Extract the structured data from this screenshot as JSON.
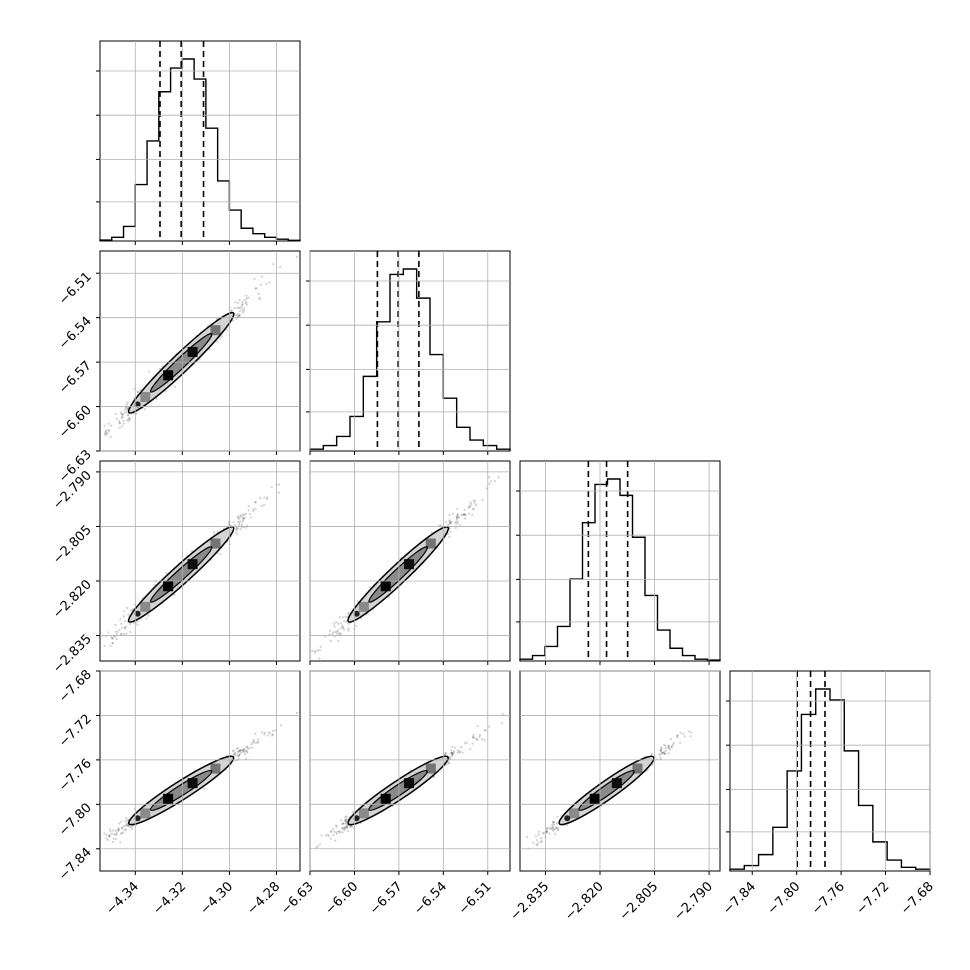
{
  "chart_data": {
    "type": "corner",
    "grid": true,
    "parameters": [
      {
        "range": [
          -4.355,
          -4.27
        ],
        "ticks": [
          -4.34,
          -4.32,
          -4.3,
          -4.28
        ],
        "tick_labels": [
          "−4.34",
          "−4.32",
          "−4.30",
          "−4.28"
        ],
        "quantiles": [
          -4.3295,
          -4.3205,
          -4.311
        ]
      },
      {
        "range": [
          -6.63,
          -6.495
        ],
        "ticks": [
          -6.63,
          -6.6,
          -6.57,
          -6.54,
          -6.51
        ],
        "tick_labels": [
          "−6.63",
          "−6.60",
          "−6.57",
          "−6.54",
          "−6.51"
        ],
        "quantiles": [
          -6.5845,
          -6.5705,
          -6.5565
        ]
      },
      {
        "range": [
          -2.842,
          -2.787
        ],
        "ticks": [
          -2.835,
          -2.82,
          -2.805,
          -2.79
        ],
        "tick_labels": [
          "−2.835",
          "−2.820",
          "−2.805",
          "−2.790"
        ],
        "quantiles": [
          -2.8232,
          -2.8182,
          -2.8124
        ]
      },
      {
        "range": [
          -7.86,
          -7.68
        ],
        "ticks": [
          -7.84,
          -7.8,
          -7.76,
          -7.72,
          -7.68
        ],
        "tick_labels": [
          "−7.84",
          "−7.80",
          "−7.76",
          "−7.72",
          "−7.68"
        ],
        "quantiles": [
          -7.7995,
          -7.7875,
          -7.7745
        ]
      }
    ],
    "histograms": [
      [
        0.005,
        0.02,
        0.08,
        0.31,
        0.55,
        0.82,
        0.95,
        1.0,
        0.89,
        0.62,
        0.33,
        0.17,
        0.07,
        0.04,
        0.02,
        0.01,
        0.004
      ],
      [
        0.01,
        0.03,
        0.08,
        0.19,
        0.41,
        0.71,
        0.97,
        1.0,
        0.84,
        0.53,
        0.29,
        0.13,
        0.06,
        0.03,
        0.01
      ],
      [
        0.01,
        0.03,
        0.08,
        0.19,
        0.45,
        0.76,
        0.97,
        1.0,
        0.91,
        0.68,
        0.36,
        0.17,
        0.07,
        0.03,
        0.01,
        0.005
      ],
      [
        0.01,
        0.03,
        0.09,
        0.24,
        0.55,
        0.86,
        1.0,
        0.94,
        0.66,
        0.36,
        0.16,
        0.06,
        0.02,
        0.01
      ]
    ],
    "scatter_samples_min_max": [
      [
        [
          -4.352,
          -4.274
        ],
        [
          -6.622,
          -6.498
        ],
        [
          -2.839,
          -2.789
        ],
        [
          -7.848,
          -7.69
        ]
      ]
    ]
  }
}
